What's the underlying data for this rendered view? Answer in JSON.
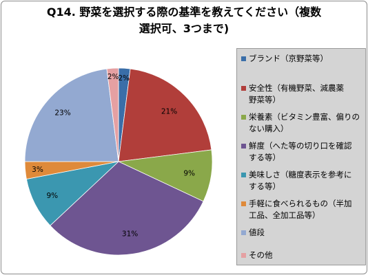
{
  "chart_data": {
    "type": "pie",
    "title": "Q14. 野菜を選択する際の基準を教えてください（複数選択可、3つまで)",
    "title_lines": [
      "Q14. 野菜を選択する際の基準を教えてください（複数",
      "選択可、3つまで)"
    ],
    "categories": [
      "ブランド（京野菜等）",
      "安全性（有機野菜、減農薬野菜等）",
      "栄養素（ビタミン豊富、偏りのない購入）",
      "鮮度（へた等の切り口を確認する等）",
      "美味しさ（糖度表示を参考にする等）",
      "手軽に食べられるもの（半加工品、全加工品等）",
      "値段",
      "その他"
    ],
    "legend_lines": [
      [
        "ブランド（京野菜等）"
      ],
      [
        "安全性（有機野菜、減農薬",
        "野菜等）"
      ],
      [
        "栄養素（ビタミン豊富、偏りの",
        "ない購入）"
      ],
      [
        "鮮度（へた等の切り口を確認",
        "する等）"
      ],
      [
        "美味しさ（糖度表示を参考に",
        "する等）"
      ],
      [
        "手軽に食べられるもの（半加",
        "工品、全加工品等）"
      ],
      [
        "値段"
      ],
      [
        "その他"
      ]
    ],
    "values": [
      2,
      21,
      9,
      31,
      9,
      3,
      23,
      2
    ],
    "labels": [
      "2%",
      "21%",
      "9%",
      "31%",
      "9%",
      "3%",
      "23%",
      "2%"
    ],
    "colors": [
      "#3a6ea8",
      "#b13e3a",
      "#8aa84a",
      "#6e5591",
      "#3b97b0",
      "#df8a3a",
      "#93a9d1",
      "#e5a0a2"
    ],
    "legend_position": "right"
  }
}
